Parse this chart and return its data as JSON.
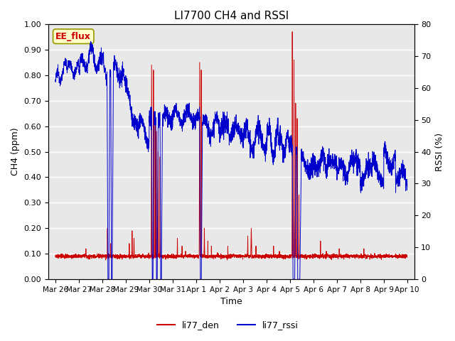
{
  "title": "LI7700 CH4 and RSSI",
  "xlabel": "Time",
  "ylabel_left": "CH4 (ppm)",
  "ylabel_right": "RSSI (%)",
  "ylim_left": [
    0.0,
    1.0
  ],
  "ylim_right": [
    0,
    80
  ],
  "yticks_left": [
    0.0,
    0.1,
    0.2,
    0.3,
    0.4,
    0.5,
    0.6,
    0.7,
    0.8,
    0.9,
    1.0
  ],
  "yticks_right": [
    0,
    10,
    20,
    30,
    40,
    50,
    60,
    70,
    80
  ],
  "color_den": "#cc0000",
  "color_rssi": "#0000cc",
  "annotation_text": "EE_flux",
  "annotation_color": "#cc0000",
  "annotation_bg": "#ffffcc",
  "annotation_border": "#999900",
  "legend_labels": [
    "li77_den",
    "li77_rssi"
  ],
  "fig_bg_color": "#ffffff",
  "plot_bg_color": "#e8e8e8",
  "grid_color": "#ffffff",
  "tick_labels": [
    "Mar 26",
    "Mar 27",
    "Mar 28",
    "Mar 29",
    "Mar 30",
    "Mar 31",
    "Apr 1",
    "Apr 2",
    "Apr 3",
    "Apr 4",
    "Apr 5",
    "Apr 6",
    "Apr 7",
    "Apr 8",
    "Apr 9",
    "Apr 10"
  ]
}
